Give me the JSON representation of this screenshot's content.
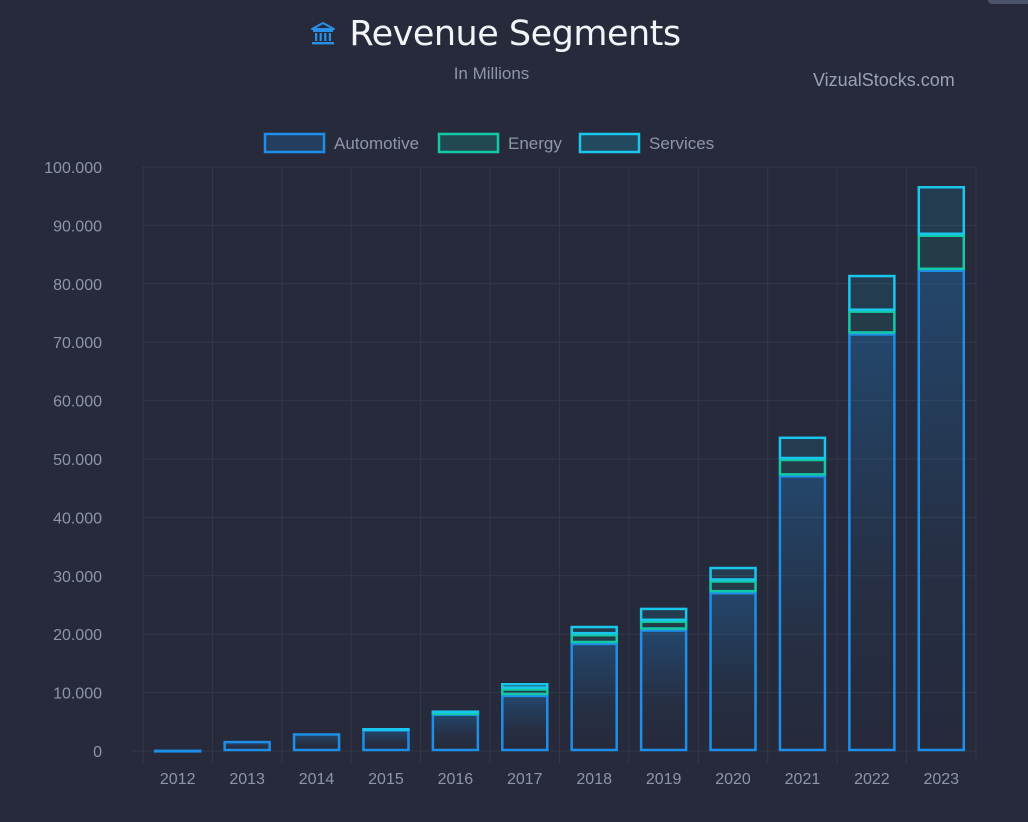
{
  "header": {
    "title": "Revenue Segments",
    "subtitle": "In Millions",
    "source": "VizualStocks.com",
    "title_icon": "bank-icon"
  },
  "colors": {
    "background": "#262a3b",
    "grid": "#333849",
    "automotive": "#1e8fe8",
    "energy": "#13c9a8",
    "services": "#19c7ec"
  },
  "chart_data": {
    "type": "bar",
    "stacked": true,
    "categories": [
      "2012",
      "2013",
      "2014",
      "2015",
      "2016",
      "2017",
      "2018",
      "2019",
      "2020",
      "2021",
      "2022",
      "2023"
    ],
    "series": [
      {
        "name": "Automotive",
        "values": [
          200,
          1700,
          3000,
          3700,
          6400,
          9600,
          18500,
          20800,
          27200,
          47200,
          71500,
          82400
        ]
      },
      {
        "name": "Energy",
        "values": [
          0,
          0,
          0,
          0,
          200,
          1100,
          1500,
          1500,
          2000,
          2800,
          3900,
          6000
        ]
      },
      {
        "name": "Services",
        "values": [
          0,
          0,
          0,
          200,
          300,
          900,
          1400,
          2200,
          2300,
          3800,
          6100,
          8300
        ]
      }
    ],
    "ylim": [
      0,
      100000
    ],
    "yticks": [
      "0",
      "10.000",
      "20.000",
      "30.000",
      "40.000",
      "50.000",
      "60.000",
      "70.000",
      "80.000",
      "90.000",
      "100.000"
    ],
    "grid": true,
    "legend_position": "top"
  }
}
